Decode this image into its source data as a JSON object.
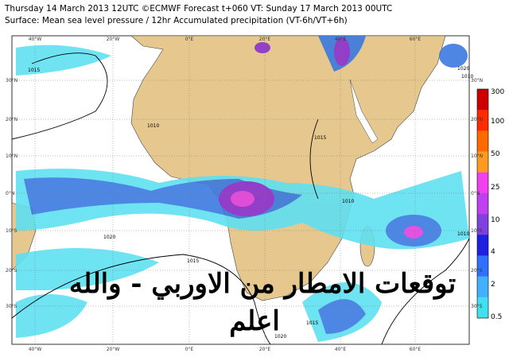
{
  "header": {
    "lines": [
      "Thursday 14 March 2013 12UTC ©ECMWF Forecast t+060 VT: Sunday 17 March 2013 00UTC",
      "Surface: Mean sea level pressure / 12hr Accumulated precipitation (VT-6h/VT+6h)"
    ]
  },
  "map": {
    "longitudes": [
      "40°W",
      "20°W",
      "0°E",
      "20°E",
      "40°E",
      "60°E"
    ],
    "latitudes": [
      "30°N",
      "20°N",
      "10°N",
      "0°N",
      "10°S",
      "20°S",
      "30°S"
    ],
    "isobar_labels": [
      "1015",
      "1010",
      "1015",
      "1020",
      "1010",
      "1015",
      "1010",
      "1010",
      "1015",
      "1020",
      "1020"
    ],
    "overlay_text": [
      "توقعات الامطار من الاوربي - والله",
      "اعلم"
    ]
  },
  "colorbar": {
    "labels": [
      "300",
      "100",
      "50",
      "25",
      "10",
      "4",
      "2",
      "0.5"
    ]
  }
}
